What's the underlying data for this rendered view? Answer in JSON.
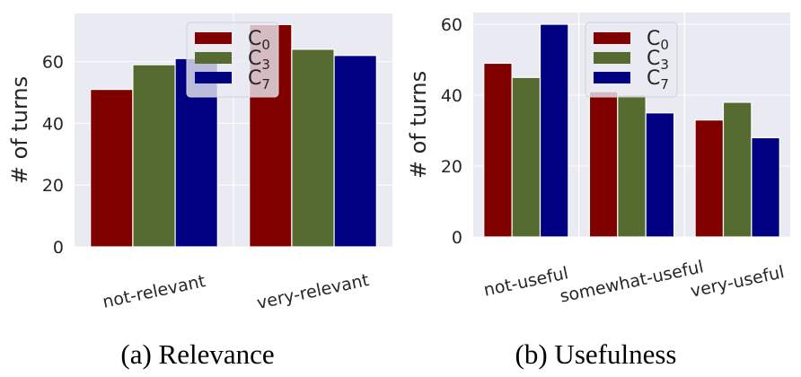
{
  "chart_data": [
    {
      "type": "bar",
      "title": "",
      "caption": "(a) Relevance",
      "ylabel": "# of turns",
      "xlabel": "",
      "categories": [
        "not-relevant",
        "very-relevant"
      ],
      "yticks": [
        0,
        20,
        40,
        60
      ],
      "ylim": [
        0,
        75.6
      ],
      "grid": true,
      "legend_placement": "upper-center",
      "series": [
        {
          "name": "C0",
          "sub": "0",
          "values": [
            51,
            72
          ],
          "color": "#800000"
        },
        {
          "name": "C3",
          "sub": "3",
          "values": [
            59,
            64
          ],
          "color": "#556b2f"
        },
        {
          "name": "C7",
          "sub": "7",
          "values": [
            61,
            62
          ],
          "color": "#000080"
        }
      ]
    },
    {
      "type": "bar",
      "title": "",
      "caption": "(b) Usefulness",
      "ylabel": "# of turns",
      "xlabel": "",
      "categories": [
        "not-useful",
        "somewhat-useful",
        "very-useful"
      ],
      "yticks": [
        0,
        20,
        40,
        60
      ],
      "ylim": [
        0,
        63.3
      ],
      "grid": true,
      "legend_placement": "upper-center",
      "series": [
        {
          "name": "C0",
          "sub": "0",
          "values": [
            49,
            41,
            33
          ],
          "color": "#800000"
        },
        {
          "name": "C3",
          "sub": "3",
          "values": [
            45,
            40,
            38
          ],
          "color": "#556b2f"
        },
        {
          "name": "C7",
          "sub": "7",
          "values": [
            60,
            35,
            28
          ],
          "color": "#000080"
        }
      ]
    }
  ]
}
